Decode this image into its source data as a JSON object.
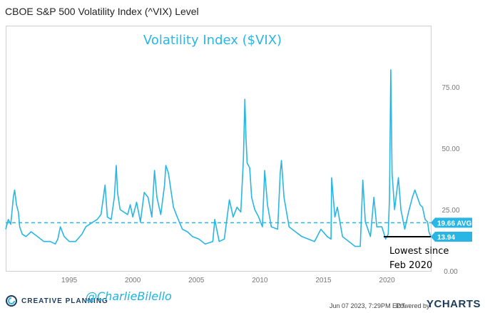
{
  "header": {
    "title": "CBOE S&P 500 Volatility Index (^VIX) Level"
  },
  "footer": {
    "brand": "CREATIVE PLANNING",
    "handle": "@CharlieBilello",
    "timestamp": "Jun 07 2023, 7:29PM EDT.",
    "powered_by": "Powered by",
    "ycharts": "YCHARTS"
  },
  "colors": {
    "series": "#29b6e4",
    "text": "#333333",
    "grid": "#e6e6e6",
    "badge": "#29b6e4"
  },
  "chart_data": {
    "type": "line",
    "title": "Volatility Index ($VIX)",
    "xlabel": "",
    "ylabel": "",
    "xlim": [
      1990.0,
      2023.45
    ],
    "ylim": [
      0,
      100
    ],
    "x_ticks": [
      1995,
      2000,
      2005,
      2010,
      2015,
      2020
    ],
    "x_tick_labels": [
      "1995",
      "2000",
      "2005",
      "2010",
      "2015",
      "2020"
    ],
    "y_ticks": [
      0,
      25,
      50,
      75
    ],
    "y_tick_labels": [
      "0.00",
      "25.00",
      "50.00",
      "75.00"
    ],
    "grid": false,
    "average": {
      "value": 19.66,
      "label": "19.66 AVG"
    },
    "last": {
      "value": 13.94,
      "label": "13.94"
    },
    "annotation": {
      "line1": "Lowest since",
      "line2": "Feb 2020"
    },
    "series": [
      {
        "x": [
          1990.0,
          1990.2,
          1990.4,
          1990.6,
          1990.7,
          1990.85,
          1991.0,
          1991.1,
          1991.3,
          1991.6,
          1992.0,
          1992.5,
          1993.0,
          1993.5,
          1993.9,
          1994.1,
          1994.3,
          1994.6,
          1995.0,
          1995.5,
          1996.0,
          1996.3,
          1996.6,
          1996.9,
          1997.2,
          1997.5,
          1997.82,
          1998.0,
          1998.3,
          1998.55,
          1998.7,
          1998.8,
          1999.0,
          1999.3,
          1999.6,
          1999.8,
          2000.0,
          2000.3,
          2000.6,
          2000.9,
          2001.2,
          2001.5,
          2001.71,
          2001.9,
          2002.2,
          2002.5,
          2002.6,
          2002.8,
          2003.0,
          2003.2,
          2003.5,
          2003.9,
          2004.3,
          2004.7,
          2005.2,
          2005.7,
          2006.3,
          2006.45,
          2006.8,
          2007.2,
          2007.6,
          2007.9,
          2008.2,
          2008.5,
          2008.7,
          2008.82,
          2008.9,
          2009.0,
          2009.2,
          2009.35,
          2009.6,
          2009.9,
          2010.2,
          2010.38,
          2010.6,
          2010.9,
          2011.4,
          2011.6,
          2011.7,
          2011.9,
          2012.3,
          2012.8,
          2013.3,
          2013.8,
          2014.3,
          2014.8,
          2015.3,
          2015.6,
          2015.65,
          2015.9,
          2016.1,
          2016.5,
          2017.0,
          2017.5,
          2017.9,
          2018.1,
          2018.3,
          2018.7,
          2018.97,
          2019.2,
          2019.6,
          2019.9,
          2020.1,
          2020.2,
          2020.3,
          2020.4,
          2020.6,
          2020.9,
          2021.1,
          2021.4,
          2021.7,
          2022.0,
          2022.2,
          2022.4,
          2022.6,
          2022.8,
          2023.0,
          2023.2,
          2023.3,
          2023.45
        ],
        "y": [
          17,
          21,
          19,
          30,
          33,
          27,
          24,
          18,
          15,
          14,
          16,
          14,
          12,
          12,
          11,
          13,
          18,
          14,
          12,
          12,
          15,
          18,
          19,
          20,
          21,
          23,
          35,
          22,
          21,
          30,
          43,
          32,
          25,
          24,
          23,
          27,
          22,
          28,
          20,
          32,
          30,
          22,
          41,
          30,
          23,
          35,
          43,
          40,
          33,
          26,
          22,
          17,
          16,
          14,
          13,
          11,
          12,
          21,
          12,
          13,
          29,
          22,
          26,
          24,
          45,
          70,
          55,
          44,
          42,
          30,
          25,
          22,
          18,
          41,
          27,
          18,
          17,
          40,
          45,
          30,
          18,
          16,
          14,
          13,
          12,
          17,
          14,
          13,
          38,
          22,
          26,
          14,
          12,
          10,
          10,
          37,
          20,
          14,
          30,
          18,
          18,
          13,
          15,
          30,
          82,
          40,
          25,
          38,
          25,
          17,
          24,
          30,
          33,
          30,
          27,
          26,
          21,
          20,
          16,
          13.94
        ]
      }
    ]
  }
}
